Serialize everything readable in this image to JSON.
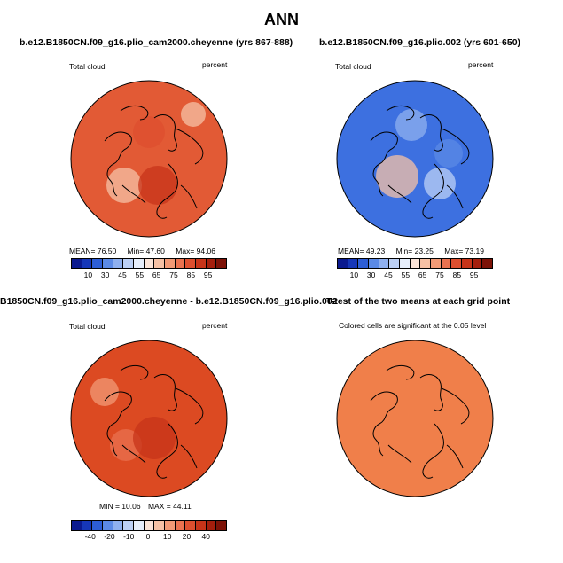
{
  "title": "ANN",
  "panels": [
    {
      "title": "b.e12.B1850CN.f09_g16.plio_cam2000.cheyenne (yrs 867-888)",
      "left_label": "Total cloud",
      "right_label": "percent",
      "stats": {
        "mean_label": "MEAN=",
        "mean": "76.50",
        "min_label": "Min=",
        "min": "47.60",
        "max_label": "Max=",
        "max": "94.06"
      },
      "colorbar": {
        "ticks": [
          "10",
          "30",
          "45",
          "55",
          "65",
          "75",
          "85",
          "95"
        ],
        "colors": [
          "#0b1a8f",
          "#1637b8",
          "#2d5ed6",
          "#5b8ae6",
          "#8fb0ef",
          "#bcd0f5",
          "#e6eefb",
          "#fbe4d8",
          "#f6c1a5",
          "#f29a76",
          "#ea7250",
          "#dd4f2f",
          "#c73419",
          "#a51f0d",
          "#7d1207"
        ]
      },
      "base_color": "#e25a35"
    },
    {
      "title": "b.e12.B1850CN.f09_g16.plio.002 (yrs 601-650)",
      "left_label": "Total cloud",
      "right_label": "percent",
      "stats": {
        "mean_label": "MEAN=",
        "mean": "49.23",
        "min_label": "Min=",
        "min": "23.25",
        "max_label": "Max=",
        "max": "73.19"
      },
      "colorbar": {
        "ticks": [
          "10",
          "30",
          "45",
          "55",
          "65",
          "75",
          "85",
          "95"
        ],
        "colors": [
          "#0b1a8f",
          "#1637b8",
          "#2d5ed6",
          "#5b8ae6",
          "#8fb0ef",
          "#bcd0f5",
          "#e6eefb",
          "#fbe4d8",
          "#f6c1a5",
          "#f29a76",
          "#ea7250",
          "#dd4f2f",
          "#c73419",
          "#a51f0d",
          "#7d1207"
        ]
      },
      "base_color": "#3d70e0"
    },
    {
      "title": "B1850CN.f09_g16.plio_cam2000.cheyenne - b.e12.B1850CN.f09_g16.plio.002",
      "left_label": "Total cloud",
      "right_label": "percent",
      "stats": {
        "min_label": "MIN =",
        "min": "10.06",
        "max_label": "MAX =",
        "max": "44.11"
      },
      "colorbar": {
        "ticks": [
          "-40",
          "-20",
          "-10",
          "0",
          "10",
          "20",
          "40"
        ],
        "colors": [
          "#0b1a8f",
          "#1637b8",
          "#2d5ed6",
          "#5b8ae6",
          "#8fb0ef",
          "#bcd0f5",
          "#e6eefb",
          "#fbe4d8",
          "#f6c1a5",
          "#f29a76",
          "#ea7250",
          "#dd4f2f",
          "#c73419",
          "#a51f0d",
          "#7d1207"
        ]
      },
      "base_color": "#dc4a22"
    },
    {
      "title": "T-test of the two means at each grid point",
      "subtitle": "Colored cells are significant at the 0.05 level",
      "base_color": "#f07f4a"
    }
  ]
}
